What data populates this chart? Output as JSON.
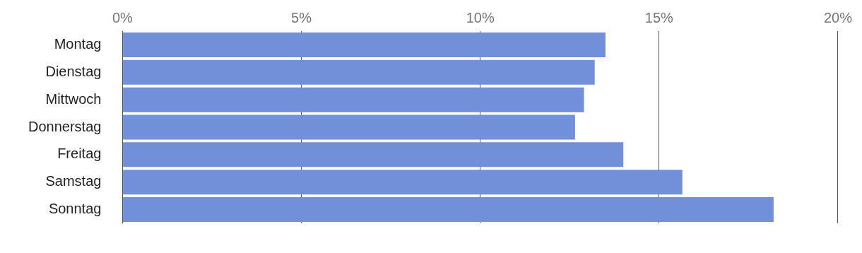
{
  "chart_data": {
    "type": "bar",
    "orientation": "horizontal",
    "categories": [
      "Montag",
      "Dienstag",
      "Mittwoch",
      "Donnerstag",
      "Freitag",
      "Samstag",
      "Sonntag"
    ],
    "values": [
      13.5,
      13.2,
      12.9,
      12.65,
      14.0,
      15.65,
      18.2
    ],
    "color": "#7190d9",
    "xlim": [
      0,
      20
    ],
    "xticks": [
      {
        "value": 0,
        "label": "0%"
      },
      {
        "value": 5,
        "label": "5%"
      },
      {
        "value": 10,
        "label": "10%"
      },
      {
        "value": 15,
        "label": "15%"
      },
      {
        "value": 20,
        "label": "20%"
      }
    ],
    "grid": "x",
    "legend": false
  }
}
